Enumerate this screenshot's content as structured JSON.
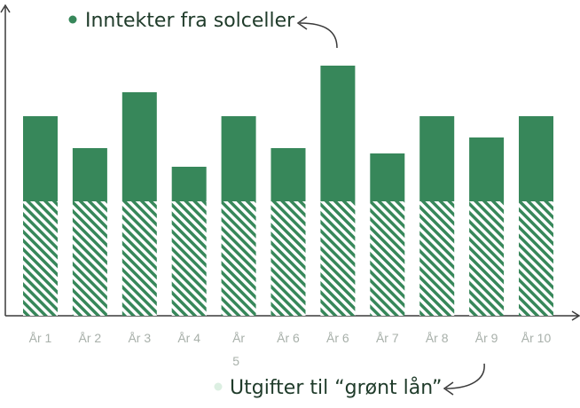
{
  "chart_data": {
    "type": "bar",
    "stacked": true,
    "categories": [
      "År 1",
      "År 2",
      "År 3",
      "År 4",
      "År 5",
      "År 6",
      "År 6",
      "År 7",
      "År 8",
      "År 9",
      "År 10"
    ],
    "series": [
      {
        "name": "Utgifter til “grønt lån”",
        "color": "#37875a",
        "pattern": "diagonal-hatch",
        "values": [
          43,
          43,
          43,
          43,
          43,
          43,
          43,
          43,
          43,
          43,
          43
        ]
      },
      {
        "name": "Inntekter fra solceller",
        "color": "#37875a",
        "values": [
          32,
          20,
          41,
          13,
          32,
          20,
          51,
          18,
          32,
          24,
          32
        ]
      }
    ],
    "ylim": [
      0,
      115
    ],
    "grid": false,
    "legend": {
      "top": "Inntekter fra solceller",
      "bottom": "Utgifter til “grønt lån”"
    },
    "colors": {
      "bar": "#37875a",
      "axis": "#3a3a3a",
      "tick_text": "#a8b0aa",
      "legend_text": "#1f3b2a",
      "legend_dot_income": "#37875a",
      "legend_dot_expense": "#dcefe2"
    }
  }
}
